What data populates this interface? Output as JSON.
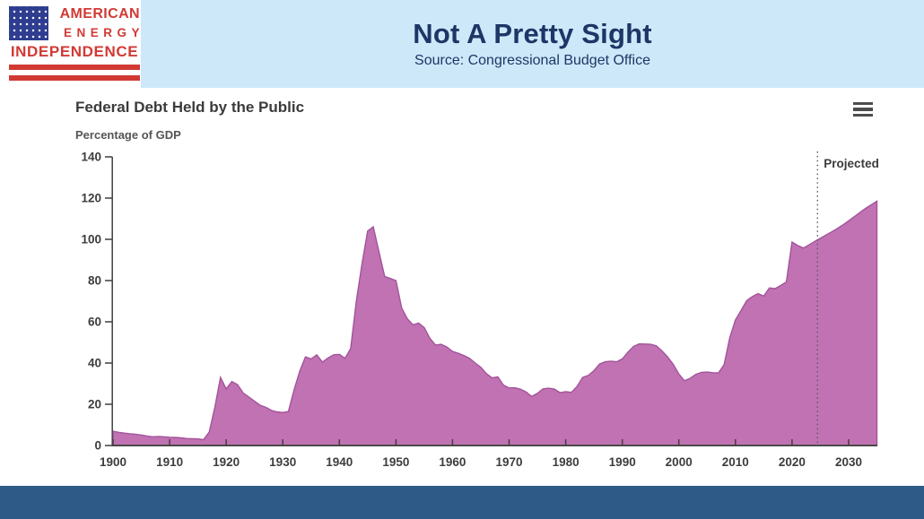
{
  "header": {
    "title": "Not A Pretty Sight",
    "subtitle": "Source: Congressional Budget Office",
    "band_color": "#cde8f9",
    "title_color": "#1d3666"
  },
  "logo": {
    "line1": "AMERICAN",
    "line2": "ENERGY",
    "line3": "INDEPENDENCE",
    "red": "#d13a34",
    "canton_blue": "#2e3d8f",
    "icon": "us-flag-icon"
  },
  "chart": {
    "title": "Federal Debt Held by the Public",
    "subtitle": "Percentage of GDP",
    "menu_icon": "hamburger-menu-icon"
  },
  "footer": {
    "bar_color": "#2e5a88"
  },
  "chart_data": {
    "type": "area",
    "title": "Federal Debt Held by the Public",
    "ylabel": "Percentage of GDP",
    "xlabel": "",
    "grid": false,
    "legend": false,
    "xlim": [
      1900,
      2035
    ],
    "ylim": [
      0,
      140
    ],
    "y_ticks": [
      0,
      20,
      40,
      60,
      80,
      100,
      120,
      140
    ],
    "x_ticks": [
      1900,
      1910,
      1920,
      1930,
      1940,
      1950,
      1960,
      1970,
      1980,
      1990,
      2000,
      2010,
      2020,
      2030
    ],
    "projection_x": 2024.5,
    "projection_label": "Projected",
    "fill_color": "#c172b3",
    "stroke_color": "#a2549a",
    "x": [
      1900,
      1901,
      1902,
      1903,
      1904,
      1905,
      1906,
      1907,
      1908,
      1909,
      1910,
      1911,
      1912,
      1913,
      1914,
      1915,
      1916,
      1917,
      1918,
      1919,
      1920,
      1921,
      1922,
      1923,
      1924,
      1925,
      1926,
      1927,
      1928,
      1929,
      1930,
      1931,
      1932,
      1933,
      1934,
      1935,
      1936,
      1937,
      1938,
      1939,
      1940,
      1941,
      1942,
      1943,
      1944,
      1945,
      1946,
      1947,
      1948,
      1949,
      1950,
      1951,
      1952,
      1953,
      1954,
      1955,
      1956,
      1957,
      1958,
      1959,
      1960,
      1961,
      1962,
      1963,
      1964,
      1965,
      1966,
      1967,
      1968,
      1969,
      1970,
      1971,
      1972,
      1973,
      1974,
      1975,
      1976,
      1977,
      1978,
      1979,
      1980,
      1981,
      1982,
      1983,
      1984,
      1985,
      1986,
      1987,
      1988,
      1989,
      1990,
      1991,
      1992,
      1993,
      1994,
      1995,
      1996,
      1997,
      1998,
      1999,
      2000,
      2001,
      2002,
      2003,
      2004,
      2005,
      2006,
      2007,
      2008,
      2009,
      2010,
      2011,
      2012,
      2013,
      2014,
      2015,
      2016,
      2017,
      2018,
      2019,
      2020,
      2021,
      2022,
      2023,
      2024,
      2025,
      2026,
      2027,
      2028,
      2029,
      2030,
      2031,
      2032,
      2033,
      2034,
      2035
    ],
    "values": [
      6.9,
      6.4,
      6.0,
      5.7,
      5.5,
      5.1,
      4.6,
      4.2,
      4.4,
      4.2,
      4.0,
      3.9,
      3.7,
      3.4,
      3.3,
      3.2,
      2.8,
      6.5,
      18.5,
      33.0,
      27.5,
      31.0,
      29.5,
      25.5,
      23.5,
      21.5,
      19.5,
      18.5,
      17.0,
      16.3,
      16.0,
      16.5,
      27.0,
      36.0,
      43.0,
      42.0,
      44.0,
      40.5,
      42.5,
      44.0,
      44.2,
      42.3,
      47.0,
      70.0,
      88.0,
      104.0,
      106.1,
      94.0,
      82.0,
      81.0,
      80.0,
      66.8,
      61.5,
      58.5,
      59.4,
      57.2,
      52.0,
      48.7,
      49.1,
      47.8,
      45.6,
      44.8,
      43.6,
      42.3,
      40.0,
      37.9,
      34.8,
      32.8,
      33.3,
      29.3,
      27.9,
      28.0,
      27.3,
      26.0,
      23.8,
      25.3,
      27.5,
      27.8,
      27.4,
      25.6,
      26.1,
      25.8,
      28.6,
      33.0,
      34.0,
      36.3,
      39.5,
      40.6,
      40.9,
      40.6,
      42.0,
      45.3,
      48.1,
      49.3,
      49.2,
      49.1,
      48.4,
      45.9,
      43.0,
      39.4,
      34.7,
      31.4,
      32.6,
      34.5,
      35.5,
      35.6,
      35.3,
      35.2,
      39.2,
      52.3,
      60.9,
      65.5,
      70.3,
      72.2,
      73.7,
      72.5,
      76.4,
      76.1,
      77.6,
      79.4,
      98.7,
      97.0,
      95.8,
      97.3,
      99.0,
      100.5,
      102.1,
      103.6,
      105.2,
      107.0,
      109.0,
      111.0,
      113.0,
      115.0,
      116.8,
      118.5
    ]
  }
}
